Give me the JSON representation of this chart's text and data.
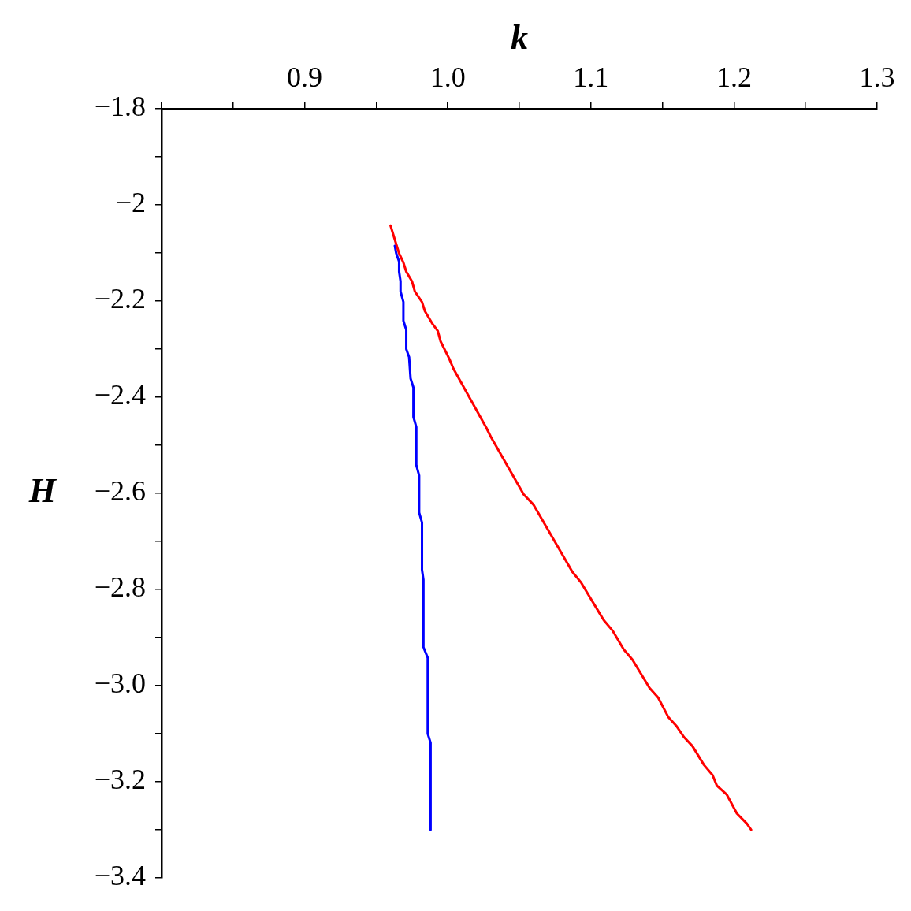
{
  "chart_data": {
    "type": "line",
    "xlabel": "k",
    "ylabel": "H",
    "xlim": [
      0.8,
      1.3
    ],
    "xticks": [
      {
        "value": 0.8,
        "label": null
      },
      {
        "value": 0.85,
        "label": null
      },
      0.9,
      {
        "value": 0.95,
        "label": null
      },
      {
        "value": 1.0,
        "label": "1.0"
      },
      {
        "value": 1.05,
        "label": null
      },
      1.1,
      {
        "value": 1.15,
        "label": null
      },
      1.2,
      {
        "value": 1.25,
        "label": null
      },
      1.3
    ],
    "ylim": [
      -3.4,
      -1.8
    ],
    "yticks": [
      {
        "value": -1.8,
        "label": "−1.8"
      },
      {
        "value": -1.9,
        "label": null
      },
      {
        "value": -2,
        "label": "−2"
      },
      {
        "value": -2.1,
        "label": null
      },
      {
        "value": -2.2,
        "label": "−2.2"
      },
      {
        "value": -2.3,
        "label": null
      },
      {
        "value": -2.4,
        "label": "−2.4"
      },
      {
        "value": -2.5,
        "label": null
      },
      {
        "value": -2.6,
        "label": "−2.6"
      },
      {
        "value": -2.7,
        "label": null
      },
      {
        "value": -2.8,
        "label": "−2.8"
      },
      {
        "value": -2.9,
        "label": null
      },
      {
        "value": -3.0,
        "label": "−3.0"
      },
      {
        "value": -3.1,
        "label": null
      },
      {
        "value": -3.2,
        "label": "−3.2"
      },
      {
        "value": -3.3,
        "label": null
      },
      {
        "value": -3.4,
        "label": "−3.4"
      }
    ],
    "series": [
      {
        "color": "#0000ff",
        "x": [
          0.963,
          0.964,
          0.966,
          0.966,
          0.967,
          0.967,
          0.969,
          0.969,
          0.971,
          0.971,
          0.973,
          0.974,
          0.976,
          0.976,
          0.978,
          0.978,
          0.98,
          0.98,
          0.982,
          0.982,
          0.983,
          0.983,
          0.986,
          0.986,
          0.988,
          0.988
        ],
        "values": [
          -2.085,
          -2.101,
          -2.118,
          -2.139,
          -2.159,
          -2.18,
          -2.202,
          -2.241,
          -2.26,
          -2.3,
          -2.317,
          -2.361,
          -2.38,
          -2.441,
          -2.462,
          -2.541,
          -2.563,
          -2.64,
          -2.661,
          -2.759,
          -2.78,
          -2.92,
          -2.942,
          -3.1,
          -3.119,
          -3.3
        ]
      },
      {
        "color": "#ff0000",
        "x": [
          0.96,
          0.964,
          0.966,
          0.969,
          0.971,
          0.975,
          0.977,
          0.982,
          0.984,
          0.989,
          0.993,
          0.995,
          1.001,
          1.004,
          1.027,
          1.03,
          1.053,
          1.06,
          1.087,
          1.093,
          1.109,
          1.115,
          1.123,
          1.129,
          1.141,
          1.147,
          1.154,
          1.16,
          1.165,
          1.171,
          1.179,
          1.185,
          1.188,
          1.195,
          1.202,
          1.209,
          1.212
        ],
        "values": [
          -2.043,
          -2.082,
          -2.101,
          -2.12,
          -2.139,
          -2.159,
          -2.18,
          -2.202,
          -2.221,
          -2.246,
          -2.262,
          -2.284,
          -2.32,
          -2.341,
          -2.464,
          -2.482,
          -2.602,
          -2.624,
          -2.763,
          -2.785,
          -2.864,
          -2.885,
          -2.925,
          -2.946,
          -3.005,
          -3.025,
          -3.065,
          -3.085,
          -3.107,
          -3.126,
          -3.165,
          -3.186,
          -3.208,
          -3.227,
          -3.266,
          -3.287,
          -3.3
        ]
      }
    ]
  }
}
